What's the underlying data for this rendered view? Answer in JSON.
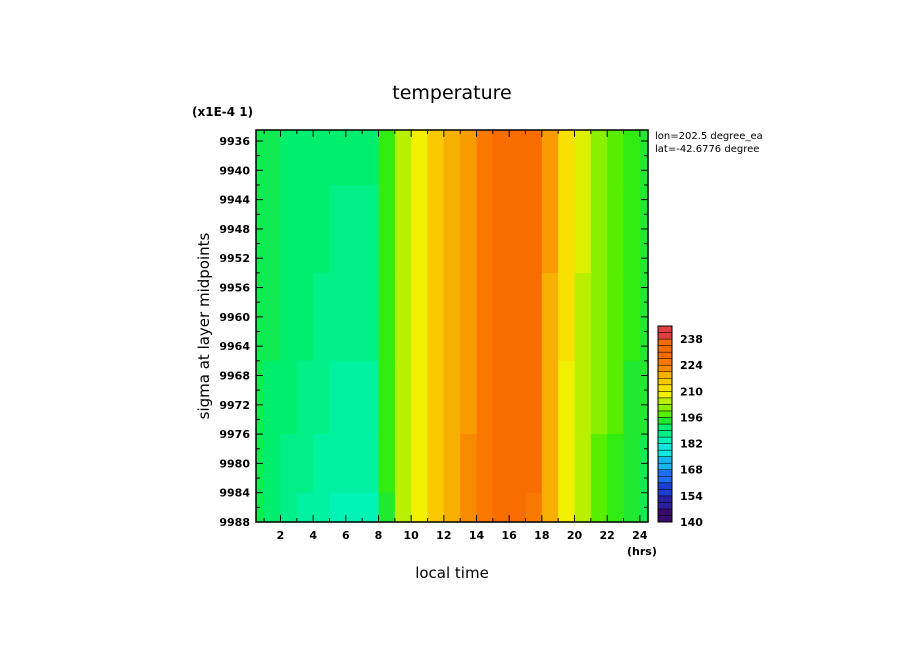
{
  "chart_data": {
    "type": "heatmap",
    "title": "temperature",
    "xlabel": "local time",
    "ylabel": "sigma at layer midpoints",
    "x_units": "(hrs)",
    "y_scale_note": "(x1E-4 1)",
    "annotations": [
      "lon=202.5 degree_ea",
      "lat=-42.6776 degree"
    ],
    "xlim": [
      0.5,
      24.5
    ],
    "ylim": [
      9934.5,
      9988
    ],
    "x_ticks": [
      "2",
      "4",
      "6",
      "8",
      "10",
      "12",
      "14",
      "16",
      "18",
      "20",
      "22",
      "24"
    ],
    "y_ticks": [
      "9936",
      "9940",
      "9944",
      "9948",
      "9952",
      "9956",
      "9960",
      "9964",
      "9968",
      "9972",
      "9976",
      "9980",
      "9984",
      "9988"
    ],
    "x": [
      0.5,
      1.5,
      2.5,
      3.5,
      4.5,
      5.5,
      6.5,
      7.5,
      8.5,
      9.5,
      10.5,
      11.5,
      12.5,
      13.5,
      14.5,
      15.5,
      16.5,
      17.5,
      18.5,
      19.5,
      20.5,
      21.5,
      22.5,
      23.5,
      24.5
    ],
    "y": [
      9936,
      9948,
      9960,
      9972,
      9980,
      9988
    ],
    "z": [
      [
        192,
        191,
        190,
        190,
        189,
        189,
        189,
        189,
        195,
        203,
        208,
        214,
        218,
        221,
        224,
        226,
        226,
        226,
        220,
        212,
        206,
        201,
        198,
        195,
        193
      ],
      [
        192,
        191,
        190,
        190,
        189,
        188,
        188,
        188,
        195,
        203,
        208,
        214,
        218,
        221,
        224,
        226,
        226,
        226,
        220,
        212,
        206,
        201,
        198,
        195,
        193
      ],
      [
        192,
        191,
        190,
        189,
        188,
        187,
        187,
        187,
        195,
        203,
        208,
        214,
        218,
        221,
        225,
        226,
        226,
        226,
        219,
        211,
        205,
        200,
        197,
        195,
        193
      ],
      [
        192,
        190,
        189,
        188,
        187,
        186,
        186,
        186,
        195,
        203,
        208,
        214,
        218,
        221,
        225,
        226,
        226,
        226,
        218,
        210,
        204,
        200,
        197,
        194,
        193
      ],
      [
        191,
        190,
        188,
        187,
        186,
        185,
        185,
        185,
        195,
        203,
        208,
        214,
        218,
        222,
        225,
        226,
        227,
        226,
        218,
        210,
        204,
        199,
        196,
        194,
        192
      ],
      [
        191,
        189,
        187,
        186,
        185,
        184,
        184,
        183,
        194,
        203,
        208,
        214,
        218,
        222,
        225,
        226,
        228,
        225,
        217,
        209,
        203,
        199,
        196,
        194,
        192
      ]
    ],
    "colorbar": {
      "levels": [
        140,
        154,
        168,
        182,
        196,
        210,
        224,
        238
      ],
      "labels": [
        "238",
        "224",
        "210",
        "196",
        "182",
        "168",
        "154",
        "140"
      ],
      "min": 140,
      "max": 245
    }
  }
}
